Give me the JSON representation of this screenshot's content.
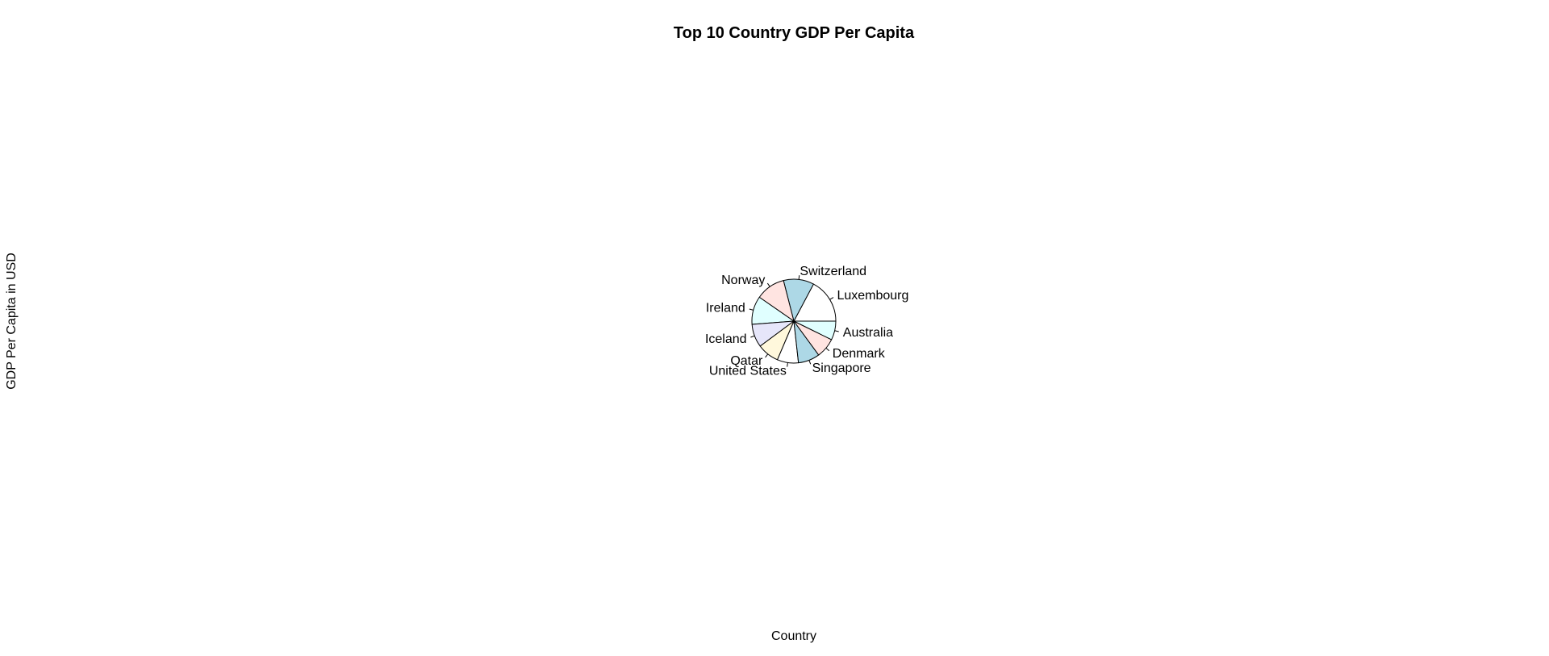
{
  "chart_data": {
    "type": "pie",
    "title": "Top 10 Country GDP Per Capita",
    "xlabel": "Country",
    "ylabel": "GDP Per Capita in USD",
    "categories": [
      "Luxembourg",
      "Switzerland",
      "Norway",
      "Ireland",
      "Iceland",
      "Qatar",
      "United States",
      "Singapore",
      "Denmark",
      "Australia"
    ],
    "values": [
      135,
      92,
      89,
      85,
      70,
      66,
      64,
      65,
      60,
      57
    ],
    "colors": [
      "#ffffff",
      "#add8e6",
      "#ffe4e1",
      "#e0ffff",
      "#e6e6fa",
      "#fff8dc",
      "#ffffff",
      "#add8e6",
      "#ffe4e1",
      "#e0ffff"
    ],
    "start_angle_deg": 0,
    "direction": "counterclockwise",
    "legend": "none"
  }
}
